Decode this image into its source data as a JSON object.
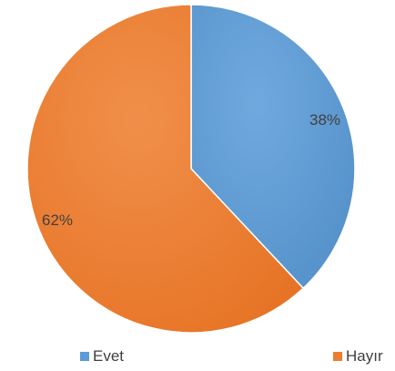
{
  "chart_data": {
    "type": "pie",
    "categories": [
      "Evet",
      "Hayır"
    ],
    "values": [
      38,
      62
    ],
    "data_labels": [
      "38%",
      "62%"
    ],
    "colors": [
      "#5b9bd5",
      "#ed7d31"
    ],
    "legend_position": "bottom",
    "start_angle": "12 o'clock, clockwise"
  },
  "legend": {
    "items": [
      {
        "label": "Evet",
        "color": "#5b9bd5"
      },
      {
        "label": "Hayır",
        "color": "#ed7d31"
      }
    ]
  }
}
